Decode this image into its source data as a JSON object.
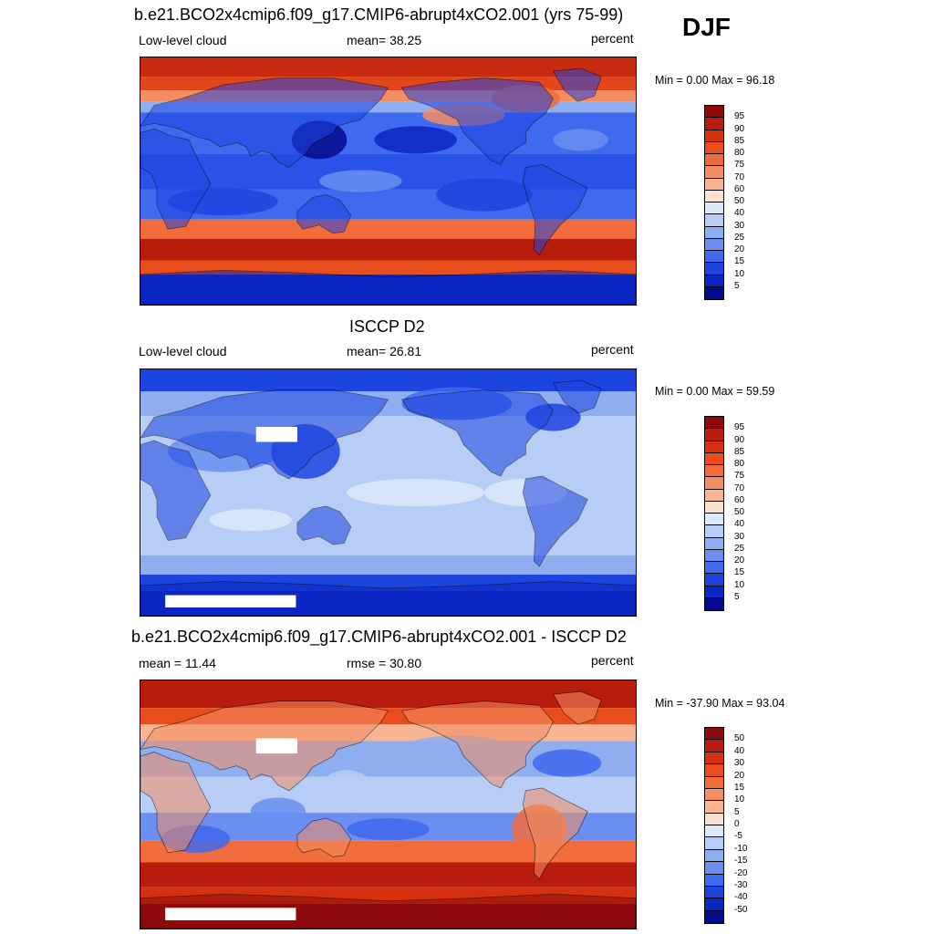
{
  "season": "DJF",
  "panels": [
    {
      "title": "b.e21.BCO2x4cmip6.f09_g17.CMIP6-abrupt4xCO2.001 (yrs 75-99)",
      "left_label": "Low-level cloud",
      "center_label": "mean=  38.25",
      "right_label": "percent",
      "minmax": "Min =   0.00 Max =  96.18",
      "colorbar": {
        "labels": [
          "95",
          "90",
          "85",
          "80",
          "75",
          "70",
          "60",
          "50",
          "40",
          "30",
          "25",
          "20",
          "15",
          "10",
          "5"
        ],
        "colors": [
          "#8c0a0a",
          "#b81c0c",
          "#d6300f",
          "#ea4d1c",
          "#f06c3c",
          "#f48e62",
          "#f7b594",
          "#fbe0cd",
          "#dde9fa",
          "#b7cdf5",
          "#8eaef0",
          "#6a8ff0",
          "#3f69ee",
          "#1e44e0",
          "#0b26c2",
          "#020b8c"
        ]
      },
      "map_style": "model"
    },
    {
      "title": "ISCCP D2",
      "left_label": "Low-level cloud",
      "center_label": "mean=  26.81",
      "right_label": "percent",
      "minmax": "Min =   0.00 Max =  59.59",
      "colorbar": {
        "labels": [
          "95",
          "90",
          "85",
          "80",
          "75",
          "70",
          "60",
          "50",
          "40",
          "30",
          "25",
          "20",
          "15",
          "10",
          "5"
        ],
        "colors": [
          "#8c0a0a",
          "#b81c0c",
          "#d6300f",
          "#ea4d1c",
          "#f06c3c",
          "#f48e62",
          "#f7b594",
          "#fbe0cd",
          "#dde9fa",
          "#b7cdf5",
          "#8eaef0",
          "#6a8ff0",
          "#3f69ee",
          "#1e44e0",
          "#0b26c2",
          "#020b8c"
        ]
      },
      "map_style": "obs"
    },
    {
      "title": "b.e21.BCO2x4cmip6.f09_g17.CMIP6-abrupt4xCO2.001 - ISCCP D2",
      "left_label": "mean =  11.44",
      "center_label": "rmse =  30.80",
      "right_label": "percent",
      "minmax": "Min = -37.90 Max =  93.04",
      "colorbar": {
        "labels": [
          "50",
          "40",
          "30",
          "20",
          "15",
          "10",
          "5",
          "0",
          "-5",
          "-10",
          "-15",
          "-20",
          "-30",
          "-40",
          "-50"
        ],
        "colors": [
          "#8c0a0a",
          "#b81c0c",
          "#d6300f",
          "#ea4d1c",
          "#f06c3c",
          "#f48e62",
          "#f7b594",
          "#fbe0cd",
          "#dde9fa",
          "#b7cdf5",
          "#8eaef0",
          "#6a8ff0",
          "#3f69ee",
          "#1e44e0",
          "#0b26c2",
          "#020b8c"
        ]
      },
      "map_style": "diff"
    }
  ]
}
